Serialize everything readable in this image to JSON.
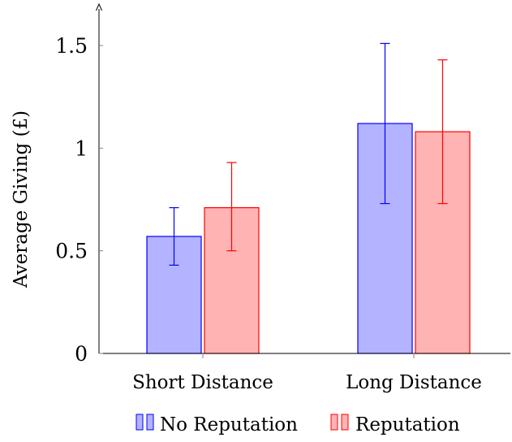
{
  "chart_data": {
    "type": "bar",
    "categories": [
      "Short Distance",
      "Long Distance"
    ],
    "series": [
      {
        "name": "No Reputation",
        "values": [
          0.57,
          1.12
        ],
        "error_low": [
          0.43,
          0.73
        ],
        "error_high": [
          0.71,
          1.51
        ],
        "fill": "#b3b3ff",
        "stroke": "#0000ff"
      },
      {
        "name": "Reputation",
        "values": [
          0.71,
          1.08
        ],
        "error_low": [
          0.5,
          0.73
        ],
        "error_high": [
          0.93,
          1.43
        ],
        "fill": "#ffb3b3",
        "stroke": "#ff0000"
      }
    ],
    "ylabel": "Average Giving (£)",
    "xlabel": "",
    "yticks": [
      0,
      0.5,
      1,
      1.5
    ],
    "ytick_labels": [
      "0",
      "0.5",
      "1",
      "1.5"
    ],
    "ylim": [
      0,
      1.7
    ],
    "legend_placement": "bottom-center",
    "grid": false
  }
}
